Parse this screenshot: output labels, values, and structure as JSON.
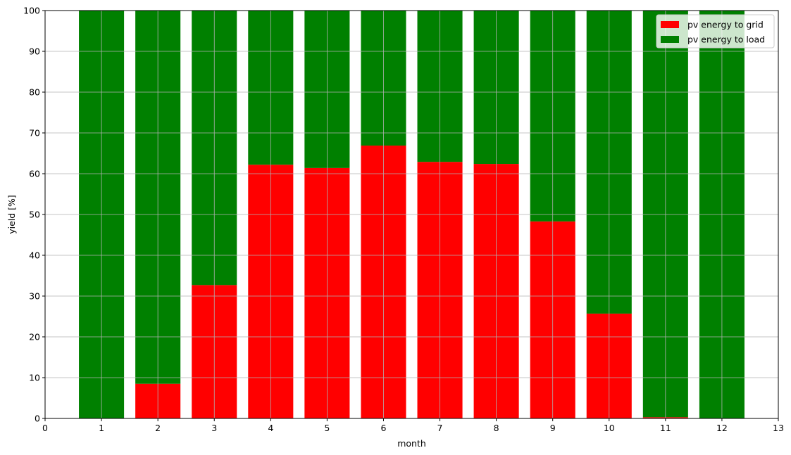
{
  "chart_data": {
    "type": "bar",
    "stacked": true,
    "x": [
      1,
      2,
      3,
      4,
      5,
      6,
      7,
      8,
      9,
      10,
      11,
      12
    ],
    "series": [
      {
        "name": "pv energy to grid",
        "color": "#ff0000",
        "values": [
          0,
          8.5,
          32.7,
          62.2,
          61.4,
          66.9,
          62.9,
          62.4,
          48.3,
          25.7,
          0.3,
          0
        ]
      },
      {
        "name": "pv energy to load",
        "color": "#008000",
        "values": [
          100,
          91.5,
          67.3,
          37.8,
          38.6,
          33.1,
          37.1,
          37.6,
          51.7,
          74.3,
          99.7,
          100
        ]
      }
    ],
    "xlabel": "month",
    "ylabel": "yield [%]",
    "xlim": [
      0,
      13
    ],
    "ylim": [
      0,
      100
    ],
    "xticks": [
      0,
      1,
      2,
      3,
      4,
      5,
      6,
      7,
      8,
      9,
      10,
      11,
      12,
      13
    ],
    "yticks": [
      0,
      10,
      20,
      30,
      40,
      50,
      60,
      70,
      80,
      90,
      100
    ],
    "grid": true,
    "legend_position": "top-right"
  }
}
